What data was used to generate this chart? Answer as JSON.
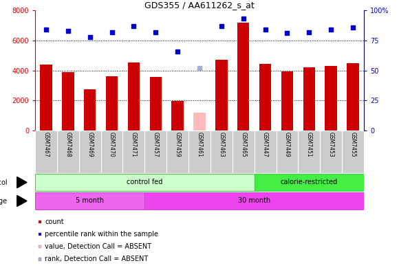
{
  "title": "GDS355 / AA611262_s_at",
  "samples": [
    "GSM7467",
    "GSM7468",
    "GSM7469",
    "GSM7470",
    "GSM7471",
    "GSM7457",
    "GSM7459",
    "GSM7461",
    "GSM7463",
    "GSM7465",
    "GSM7447",
    "GSM7449",
    "GSM7451",
    "GSM7453",
    "GSM7455"
  ],
  "counts": [
    4400,
    3900,
    2750,
    3600,
    4550,
    3550,
    1950,
    null,
    4700,
    7200,
    4450,
    3950,
    4200,
    4300,
    4500
  ],
  "absent_count": 1200,
  "absent_idx": 7,
  "ranks": [
    84,
    83,
    78,
    82,
    87,
    82,
    66,
    null,
    87,
    93,
    84,
    81,
    82,
    84,
    86
  ],
  "absent_rank": 52,
  "absent_rank_idx": 7,
  "ylim_left": [
    0,
    8000
  ],
  "ylim_right": [
    0,
    100
  ],
  "yticks_left": [
    0,
    2000,
    4000,
    6000,
    8000
  ],
  "yticks_right": [
    0,
    25,
    50,
    75,
    100
  ],
  "bar_color": "#cc0000",
  "absent_bar_color": "#ffbbbb",
  "dot_color": "#0000cc",
  "absent_dot_color": "#aaaadd",
  "protocol_control": {
    "label": "control fed",
    "start": 0,
    "end": 10,
    "color": "#ccffcc",
    "border": "#44cc44"
  },
  "protocol_calorie": {
    "label": "calorie-restricted",
    "start": 10,
    "end": 15,
    "color": "#44ee44",
    "border": "#44cc44"
  },
  "age_5month": {
    "label": "5 month",
    "start": 0,
    "end": 5,
    "color": "#ee66ee",
    "border": "#cc44cc"
  },
  "age_30month": {
    "label": "30 month",
    "start": 5,
    "end": 15,
    "color": "#ee44ee",
    "border": "#cc44cc"
  },
  "legend": [
    {
      "label": "count",
      "color": "#cc0000"
    },
    {
      "label": "percentile rank within the sample",
      "color": "#0000cc"
    },
    {
      "label": "value, Detection Call = ABSENT",
      "color": "#ffbbbb"
    },
    {
      "label": "rank, Detection Call = ABSENT",
      "color": "#aaaadd"
    }
  ],
  "tick_area_color": "#cccccc",
  "left_axis_color": "#cc0000",
  "right_axis_color": "#0000cc"
}
